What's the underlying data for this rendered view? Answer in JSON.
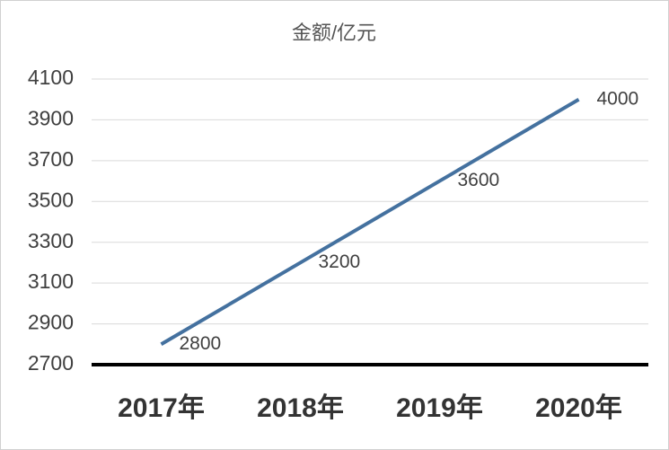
{
  "chart_data": {
    "type": "line",
    "title": "金额/亿元",
    "categories": [
      "2017年",
      "2018年",
      "2019年",
      "2020年"
    ],
    "series": [
      {
        "name": "金额/亿元",
        "color": "#44719f",
        "values": [
          2800,
          3200,
          3600,
          4000
        ]
      }
    ],
    "ylim": [
      2700,
      4100
    ],
    "yticks": [
      2700,
      2900,
      3100,
      3300,
      3500,
      3700,
      3900,
      4100
    ],
    "grid": true
  }
}
